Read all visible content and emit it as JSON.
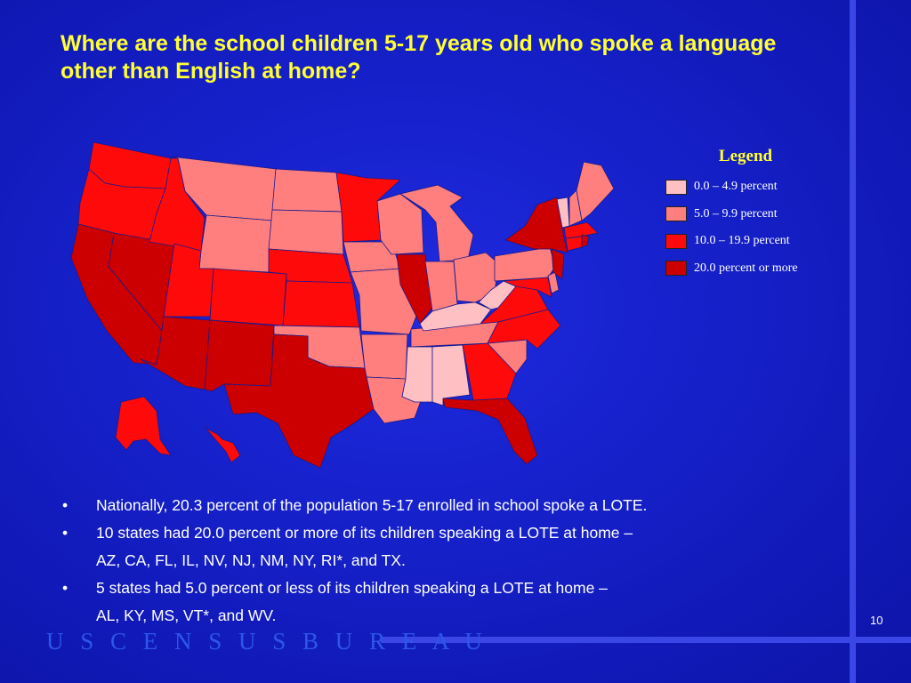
{
  "slide": {
    "title": "Where are the school children 5-17 years old who spoke a language other than English at home?",
    "page_number": "10",
    "footer": "U S C E N S U S B U R E A U"
  },
  "legend": {
    "title": "Legend",
    "items": [
      {
        "label": "0.0 – 4.9 percent",
        "color": "#ffc0c4"
      },
      {
        "label": "5.0 – 9.9 percent",
        "color": "#ff7f7f"
      },
      {
        "label": "10.0 – 19.9 percent",
        "color": "#ff0a0a"
      },
      {
        "label": "20.0 percent or more",
        "color": "#cc0000"
      }
    ]
  },
  "bullets": [
    {
      "marker": "•",
      "line1": "Nationally, 20.3 percent of the population 5-17 enrolled in school spoke a LOTE.",
      "line2": ""
    },
    {
      "marker": "•",
      "line1": "10 states had 20.0 percent or more of its children speaking a LOTE at home –",
      "line2": "AZ, CA, FL, IL, NV, NJ, NM, NY, RI*, and TX."
    },
    {
      "marker": "•",
      "line1": "5 states had 5.0 percent or less of its children speaking a LOTE at home –",
      "line2": "AL, KY, MS, VT*, and WV."
    }
  ],
  "map_data": {
    "type": "choropleth",
    "categories": [
      "0.0 – 4.9 percent",
      "5.0 – 9.9 percent",
      "10.0 – 19.9 percent",
      "20.0 percent or more"
    ],
    "states": {
      "AL": 0,
      "KY": 0,
      "MS": 0,
      "VT": 0,
      "WV": 0,
      "MT": 1,
      "WY": 1,
      "ND": 1,
      "SD": 1,
      "IA": 1,
      "MO": 1,
      "WI": 1,
      "MI": 1,
      "IN": 1,
      "OH": 1,
      "PA": 1,
      "TN": 1,
      "AR": 1,
      "LA": 1,
      "OK": 1,
      "SC": 1,
      "ME": 1,
      "NH": 1,
      "DE": 1,
      "WA": 2,
      "OR": 2,
      "ID": 2,
      "UT": 2,
      "CO": 2,
      "KS": 2,
      "NE": 2,
      "MN": 2,
      "GA": 2,
      "NC": 2,
      "VA": 2,
      "MD": 2,
      "CT": 2,
      "MA": 2,
      "AK": 2,
      "HI": 2,
      "CA": 3,
      "NV": 3,
      "AZ": 3,
      "NM": 3,
      "TX": 3,
      "IL": 3,
      "FL": 3,
      "NY": 3,
      "NJ": 3,
      "RI": 3
    }
  }
}
